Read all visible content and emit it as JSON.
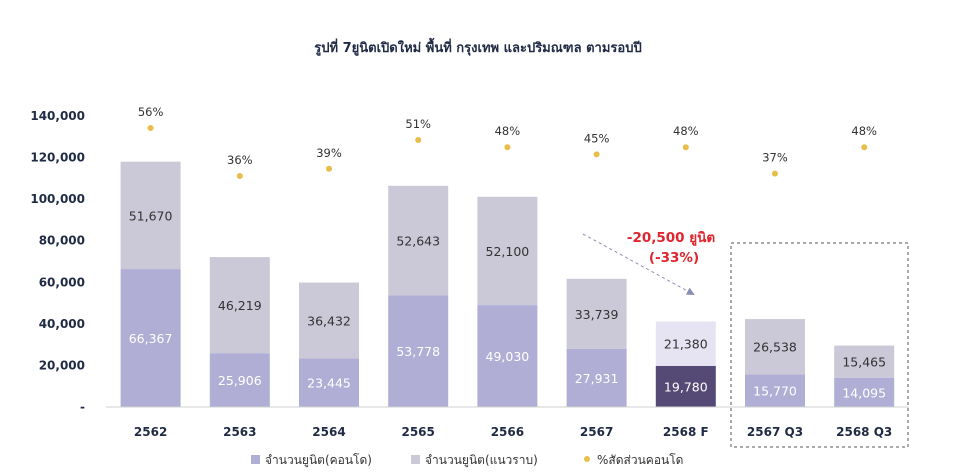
{
  "chart_data": {
    "type": "bar",
    "stacked": true,
    "title": "รูปที่ 7ยูนิตเปิดใหม่ พื้นที่ กรุงเทพ และปริมณฑล ตามรอบปี",
    "categories": [
      "2562",
      "2563",
      "2564",
      "2565",
      "2566",
      "2567",
      "2568 F",
      "2567 Q3",
      "2568 Q3"
    ],
    "ylim": [
      0,
      140000
    ],
    "yticks": [
      0,
      20000,
      40000,
      60000,
      80000,
      100000,
      120000,
      140000
    ],
    "ytick_labels": [
      "-",
      "20,000",
      "40,000",
      "60,000",
      "80,000",
      "100,000",
      "120,000",
      "140,000"
    ],
    "series": [
      {
        "name": "จำนวนยูนิต(คอนโด)",
        "color": "#b1aed6",
        "values": [
          66367,
          25906,
          23445,
          53778,
          49030,
          27931,
          19780,
          15770,
          14095
        ],
        "labels": [
          "66,367",
          "25,906",
          "23,445",
          "53,778",
          "49,030",
          "27,931",
          "19,780",
          "15,770",
          "14,095"
        ]
      },
      {
        "name": "จำนวนยูนิต(แนวราบ)",
        "color": "#cbc9d8",
        "values": [
          51670,
          46219,
          36432,
          52643,
          52100,
          33739,
          21380,
          26538,
          15465
        ],
        "labels": [
          "51,670",
          "46,219",
          "36,432",
          "52,643",
          "52,100",
          "33,739",
          "21,380",
          "26,538",
          "15,465"
        ]
      }
    ],
    "highlight": {
      "category": "2568 F",
      "colors": [
        "#554a75",
        "#e6e4f2"
      ],
      "label_colors": [
        "#ffffff",
        "#333333"
      ]
    },
    "condo_share": {
      "name": "%สัดส่วนคอนโด",
      "color": "#e9bd4a",
      "values": [
        56,
        36,
        39,
        51,
        48,
        45,
        48,
        37,
        48
      ],
      "labels": [
        "56%",
        "36%",
        "39%",
        "51%",
        "48%",
        "45%",
        "48%",
        "37%",
        "48%"
      ]
    },
    "annotation": {
      "line1": "-20,500 ยูนิต",
      "line2": "(-33%)"
    },
    "dashed_box_categories": [
      "2567 Q3",
      "2568 Q3"
    ]
  },
  "legend": [
    {
      "label": "จำนวนยูนิต(คอนโด)",
      "color": "#b1aed6",
      "shape": "square"
    },
    {
      "label": "จำนวนยูนิต(แนวราบ)",
      "color": "#cbc9d8",
      "shape": "square"
    },
    {
      "label": "%สัดส่วนคอนโด",
      "color": "#e9bd4a",
      "shape": "dot"
    }
  ]
}
